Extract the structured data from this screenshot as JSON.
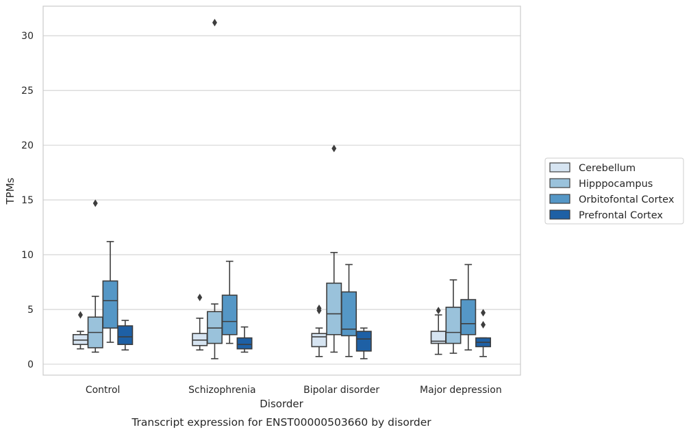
{
  "chart_data": {
    "type": "box",
    "xlabel": "Disorder",
    "ylabel": "TPMs",
    "caption": "Transcript expression for ENST00000503660 by disorder",
    "ylim": [
      -1,
      32.7
    ],
    "yticks": [
      0,
      5,
      10,
      15,
      20,
      25,
      30
    ],
    "grid": "horizontal",
    "legend_position": "right",
    "categories": [
      "Control",
      "Schizophrenia",
      "Bipolar disorder",
      "Major depression"
    ],
    "series": [
      {
        "name": "Cerebellum",
        "color": "#d6e4f1",
        "boxes": [
          {
            "whisker_low": 1.4,
            "q1": 1.8,
            "median": 2.2,
            "q3": 2.7,
            "whisker_high": 3.0,
            "outliers": [
              4.5
            ]
          },
          {
            "whisker_low": 1.3,
            "q1": 1.7,
            "median": 2.2,
            "q3": 2.8,
            "whisker_high": 4.2,
            "outliers": [
              6.1
            ]
          },
          {
            "whisker_low": 0.7,
            "q1": 1.6,
            "median": 2.5,
            "q3": 2.8,
            "whisker_high": 3.3,
            "outliers": [
              4.9,
              5.1
            ]
          },
          {
            "whisker_low": 0.9,
            "q1": 1.9,
            "median": 2.1,
            "q3": 3.0,
            "whisker_high": 4.5,
            "outliers": [
              4.9
            ]
          }
        ]
      },
      {
        "name": "Hipppocampus",
        "color": "#9ac2db",
        "boxes": [
          {
            "whisker_low": 1.1,
            "q1": 1.5,
            "median": 2.9,
            "q3": 4.3,
            "whisker_high": 6.2,
            "outliers": [
              14.7
            ]
          },
          {
            "whisker_low": 0.5,
            "q1": 1.9,
            "median": 3.3,
            "q3": 4.8,
            "whisker_high": 5.5,
            "outliers": [
              31.2
            ]
          },
          {
            "whisker_low": 1.1,
            "q1": 2.7,
            "median": 4.6,
            "q3": 7.4,
            "whisker_high": 10.2,
            "outliers": [
              19.7
            ]
          },
          {
            "whisker_low": 1.0,
            "q1": 1.9,
            "median": 2.9,
            "q3": 5.2,
            "whisker_high": 7.7,
            "outliers": []
          }
        ]
      },
      {
        "name": "Orbitofontal Cortex",
        "color": "#5597c6",
        "boxes": [
          {
            "whisker_low": 2.0,
            "q1": 3.3,
            "median": 5.8,
            "q3": 7.6,
            "whisker_high": 11.2,
            "outliers": []
          },
          {
            "whisker_low": 1.9,
            "q1": 2.7,
            "median": 3.9,
            "q3": 6.3,
            "whisker_high": 9.4,
            "outliers": []
          },
          {
            "whisker_low": 0.7,
            "q1": 2.6,
            "median": 3.2,
            "q3": 6.6,
            "whisker_high": 9.1,
            "outliers": []
          },
          {
            "whisker_low": 1.3,
            "q1": 2.7,
            "median": 3.7,
            "q3": 5.9,
            "whisker_high": 9.1,
            "outliers": []
          }
        ]
      },
      {
        "name": "Prefrontal Cortex",
        "color": "#1e60a5",
        "boxes": [
          {
            "whisker_low": 1.3,
            "q1": 1.8,
            "median": 2.5,
            "q3": 3.5,
            "whisker_high": 4.0,
            "outliers": []
          },
          {
            "whisker_low": 1.1,
            "q1": 1.4,
            "median": 1.8,
            "q3": 2.4,
            "whisker_high": 3.4,
            "outliers": []
          },
          {
            "whisker_low": 0.5,
            "q1": 1.2,
            "median": 2.3,
            "q3": 3.0,
            "whisker_high": 3.3,
            "outliers": []
          },
          {
            "whisker_low": 0.7,
            "q1": 1.6,
            "median": 2.0,
            "q3": 2.4,
            "whisker_high": 2.4,
            "outliers": [
              3.6,
              4.7
            ]
          }
        ]
      }
    ]
  }
}
